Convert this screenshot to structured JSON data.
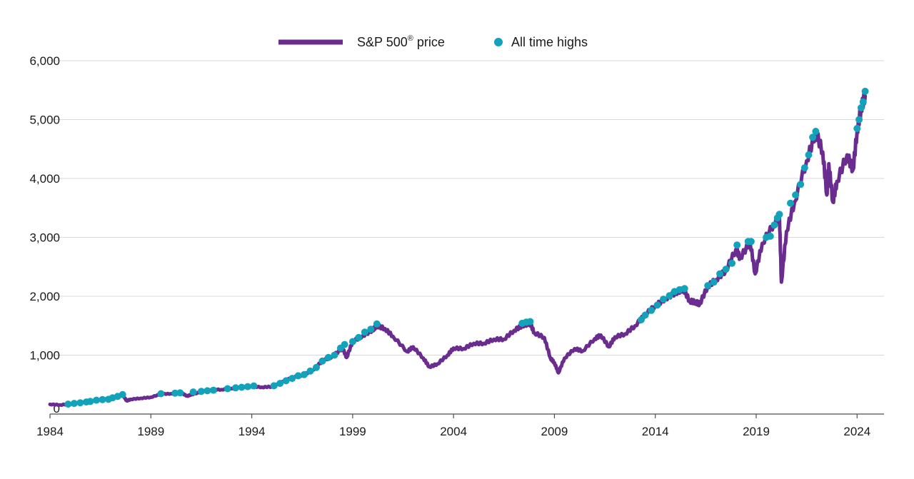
{
  "chart_data": {
    "type": "line",
    "title": "",
    "xlabel": "",
    "ylabel": "",
    "xlim": [
      1984,
      2024.45
    ],
    "ylim": [
      0,
      6000
    ],
    "grid": "horizontal",
    "legend_position": "top-center",
    "x_ticks": [
      "1984",
      "1989",
      "1994",
      "1999",
      "2004",
      "2009",
      "2014",
      "2019",
      "2024"
    ],
    "y_ticks": [
      "0",
      "1,000",
      "2,000",
      "3,000",
      "4,000",
      "5,000",
      "6,000"
    ],
    "series": [
      {
        "name": "S&P 500",
        "name_superscript": "®",
        "name_suffix": " price",
        "kind": "line",
        "color": "#6b2c8f",
        "points": [
          [
            1984.0,
            165
          ],
          [
            1984.5,
            155
          ],
          [
            1985.0,
            172
          ],
          [
            1985.5,
            190
          ],
          [
            1986.0,
            210
          ],
          [
            1986.5,
            245
          ],
          [
            1987.0,
            270
          ],
          [
            1987.6,
            325
          ],
          [
            1987.8,
            225
          ],
          [
            1988.0,
            250
          ],
          [
            1988.5,
            268
          ],
          [
            1989.0,
            285
          ],
          [
            1989.5,
            340
          ],
          [
            1990.0,
            345
          ],
          [
            1990.5,
            360
          ],
          [
            1990.8,
            305
          ],
          [
            1991.0,
            330
          ],
          [
            1991.5,
            375
          ],
          [
            1992.0,
            415
          ],
          [
            1992.5,
            415
          ],
          [
            1993.0,
            435
          ],
          [
            1993.5,
            450
          ],
          [
            1994.0,
            470
          ],
          [
            1994.5,
            455
          ],
          [
            1995.0,
            465
          ],
          [
            1995.5,
            550
          ],
          [
            1996.0,
            615
          ],
          [
            1996.5,
            660
          ],
          [
            1997.0,
            740
          ],
          [
            1997.5,
            900
          ],
          [
            1998.0,
            980
          ],
          [
            1998.5,
            1120
          ],
          [
            1998.7,
            960
          ],
          [
            1999.0,
            1230
          ],
          [
            1999.5,
            1330
          ],
          [
            2000.0,
            1430
          ],
          [
            2000.2,
            1500
          ],
          [
            2000.6,
            1450
          ],
          [
            2001.0,
            1320
          ],
          [
            2001.7,
            1060
          ],
          [
            2002.0,
            1140
          ],
          [
            2002.5,
            950
          ],
          [
            2002.8,
            800
          ],
          [
            2003.2,
            850
          ],
          [
            2003.7,
            1000
          ],
          [
            2004.0,
            1120
          ],
          [
            2004.5,
            1110
          ],
          [
            2005.0,
            1200
          ],
          [
            2005.5,
            1200
          ],
          [
            2006.0,
            1270
          ],
          [
            2006.5,
            1270
          ],
          [
            2007.0,
            1420
          ],
          [
            2007.4,
            1500
          ],
          [
            2007.8,
            1540
          ],
          [
            2008.0,
            1380
          ],
          [
            2008.5,
            1300
          ],
          [
            2008.8,
            950
          ],
          [
            2009.0,
            870
          ],
          [
            2009.2,
            700
          ],
          [
            2009.5,
            950
          ],
          [
            2010.0,
            1110
          ],
          [
            2010.4,
            1070
          ],
          [
            2011.0,
            1280
          ],
          [
            2011.3,
            1340
          ],
          [
            2011.7,
            1140
          ],
          [
            2012.0,
            1310
          ],
          [
            2012.5,
            1360
          ],
          [
            2013.0,
            1500
          ],
          [
            2013.5,
            1690
          ],
          [
            2014.0,
            1840
          ],
          [
            2014.5,
            1960
          ],
          [
            2015.0,
            2060
          ],
          [
            2015.4,
            2120
          ],
          [
            2015.7,
            1920
          ],
          [
            2016.0,
            1900
          ],
          [
            2016.2,
            1870
          ],
          [
            2016.6,
            2170
          ],
          [
            2017.0,
            2280
          ],
          [
            2017.5,
            2440
          ],
          [
            2018.0,
            2800
          ],
          [
            2018.2,
            2650
          ],
          [
            2018.7,
            2920
          ],
          [
            2018.95,
            2380
          ],
          [
            2019.3,
            2900
          ],
          [
            2019.9,
            3240
          ],
          [
            2020.15,
            3380
          ],
          [
            2020.25,
            2240
          ],
          [
            2020.5,
            3100
          ],
          [
            2020.9,
            3600
          ],
          [
            2021.5,
            4300
          ],
          [
            2021.95,
            4790
          ],
          [
            2022.3,
            4450
          ],
          [
            2022.5,
            3720
          ],
          [
            2022.6,
            4250
          ],
          [
            2022.8,
            3600
          ],
          [
            2023.0,
            3950
          ],
          [
            2023.5,
            4400
          ],
          [
            2023.8,
            4150
          ],
          [
            2024.0,
            4800
          ],
          [
            2024.2,
            5200
          ],
          [
            2024.4,
            5400
          ]
        ]
      },
      {
        "name": "All time highs",
        "kind": "scatter",
        "color": "#12a3ba",
        "points": [
          [
            1984.9,
            168
          ],
          [
            1985.2,
            180
          ],
          [
            1985.5,
            192
          ],
          [
            1985.8,
            205
          ],
          [
            1986.0,
            215
          ],
          [
            1986.3,
            235
          ],
          [
            1986.6,
            245
          ],
          [
            1986.9,
            250
          ],
          [
            1987.1,
            275
          ],
          [
            1987.35,
            300
          ],
          [
            1987.6,
            330
          ],
          [
            1989.5,
            345
          ],
          [
            1990.2,
            355
          ],
          [
            1990.45,
            360
          ],
          [
            1991.1,
            375
          ],
          [
            1991.5,
            385
          ],
          [
            1991.8,
            395
          ],
          [
            1992.1,
            405
          ],
          [
            1992.8,
            430
          ],
          [
            1993.2,
            445
          ],
          [
            1993.5,
            455
          ],
          [
            1993.8,
            465
          ],
          [
            1994.1,
            478
          ],
          [
            1995.1,
            480
          ],
          [
            1995.4,
            520
          ],
          [
            1995.7,
            565
          ],
          [
            1996.0,
            605
          ],
          [
            1996.3,
            650
          ],
          [
            1996.6,
            670
          ],
          [
            1996.9,
            730
          ],
          [
            1997.2,
            790
          ],
          [
            1997.5,
            900
          ],
          [
            1997.8,
            960
          ],
          [
            1998.1,
            1000
          ],
          [
            1998.4,
            1120
          ],
          [
            1998.6,
            1180
          ],
          [
            1999.0,
            1230
          ],
          [
            1999.3,
            1300
          ],
          [
            1999.6,
            1390
          ],
          [
            1999.9,
            1440
          ],
          [
            2000.2,
            1530
          ],
          [
            2007.4,
            1540
          ],
          [
            2007.6,
            1560
          ],
          [
            2007.8,
            1570
          ],
          [
            2013.3,
            1600
          ],
          [
            2013.5,
            1680
          ],
          [
            2013.8,
            1760
          ],
          [
            2014.1,
            1850
          ],
          [
            2014.4,
            1950
          ],
          [
            2014.7,
            2010
          ],
          [
            2014.95,
            2080
          ],
          [
            2015.2,
            2110
          ],
          [
            2015.45,
            2130
          ],
          [
            2016.6,
            2180
          ],
          [
            2016.9,
            2240
          ],
          [
            2017.2,
            2380
          ],
          [
            2017.5,
            2460
          ],
          [
            2017.8,
            2560
          ],
          [
            2018.05,
            2870
          ],
          [
            2018.6,
            2930
          ],
          [
            2018.75,
            2930
          ],
          [
            2019.5,
            3000
          ],
          [
            2019.7,
            3020
          ],
          [
            2019.9,
            3210
          ],
          [
            2020.05,
            3330
          ],
          [
            2020.15,
            3390
          ],
          [
            2020.7,
            3580
          ],
          [
            2020.95,
            3720
          ],
          [
            2021.2,
            3900
          ],
          [
            2021.4,
            4180
          ],
          [
            2021.6,
            4400
          ],
          [
            2021.8,
            4700
          ],
          [
            2021.95,
            4800
          ],
          [
            2024.0,
            4850
          ],
          [
            2024.1,
            5000
          ],
          [
            2024.2,
            5200
          ],
          [
            2024.3,
            5300
          ],
          [
            2024.4,
            5480
          ]
        ]
      }
    ]
  }
}
